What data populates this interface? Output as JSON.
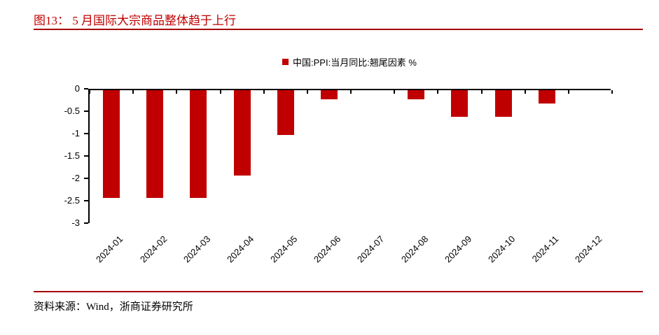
{
  "header": {
    "figure_title": "图13： 5 月国际大宗商品整体趋于上行"
  },
  "legend": {
    "label": "中国:PPI:当月同比:翘尾因素 %"
  },
  "footer": {
    "source": "资料来源：Wind，浙商证券研究所"
  },
  "colors": {
    "accent": "#c00000",
    "bar": "#c00000",
    "rule": "#a50000",
    "axis": "#000000"
  },
  "chart_data": {
    "type": "bar",
    "title": "图13： 5 月国际大宗商品整体趋于上行",
    "legend_entries": [
      "中国:PPI:当月同比:翘尾因素 %"
    ],
    "legend_position": "top-center",
    "categories": [
      "2024-01",
      "2024-02",
      "2024-03",
      "2024-04",
      "2024-05",
      "2024-06",
      "2024-07",
      "2024-08",
      "2024-09",
      "2024-10",
      "2024-11",
      "2024-12"
    ],
    "values": [
      -2.4,
      -2.4,
      -2.4,
      -1.9,
      -1.0,
      -0.2,
      0,
      -0.2,
      -0.6,
      -0.6,
      -0.3,
      0
    ],
    "xlabel": "",
    "ylabel": "",
    "ylim": [
      -3,
      0
    ],
    "ytick_labels": [
      "0",
      "-0.5",
      "-1",
      "-1.5",
      "-2",
      "-2.5",
      "-3"
    ],
    "grid": false
  }
}
